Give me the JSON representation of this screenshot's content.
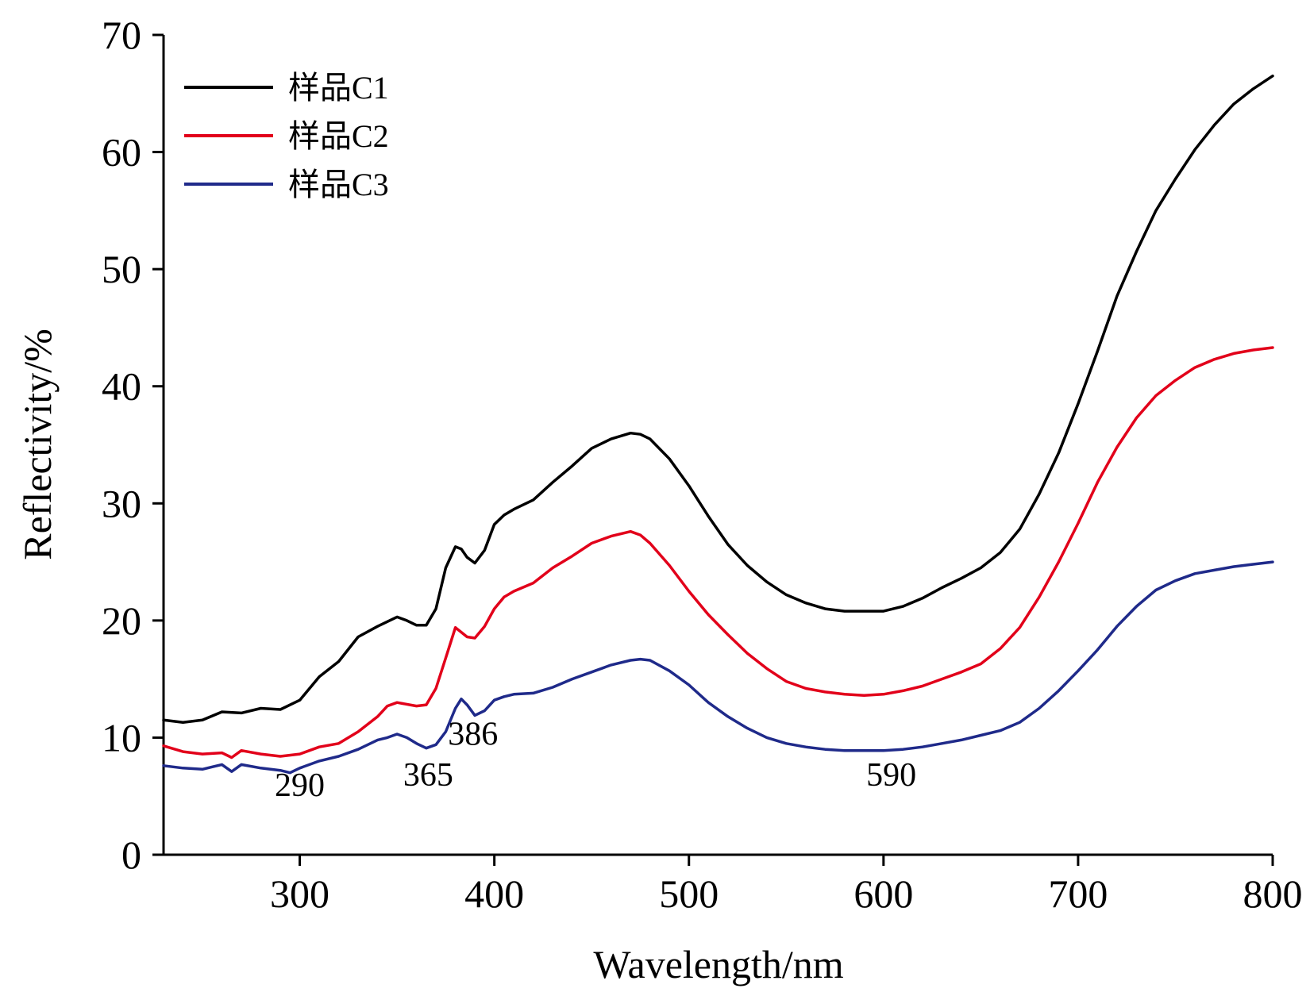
{
  "chart_data": {
    "type": "line",
    "xlabel": "Wavelength/nm",
    "ylabel": "Reflectivity/%",
    "xlim": [
      230,
      800
    ],
    "ylim": [
      0,
      70
    ],
    "xticks": [
      300,
      400,
      500,
      600,
      700,
      800
    ],
    "yticks": [
      0,
      10,
      20,
      30,
      40,
      50,
      60,
      70
    ],
    "grid": false,
    "legend_position": "top-left",
    "series": [
      {
        "name": "样品C1",
        "color": "#000000",
        "x": [
          230,
          240,
          250,
          260,
          270,
          280,
          290,
          300,
          310,
          320,
          330,
          340,
          350,
          355,
          360,
          365,
          370,
          375,
          380,
          383,
          386,
          390,
          395,
          400,
          405,
          410,
          420,
          430,
          440,
          450,
          460,
          470,
          475,
          480,
          490,
          500,
          510,
          520,
          530,
          540,
          550,
          560,
          570,
          580,
          590,
          600,
          610,
          620,
          630,
          640,
          650,
          660,
          670,
          680,
          690,
          700,
          710,
          720,
          730,
          740,
          750,
          760,
          770,
          780,
          790,
          800
        ],
        "y": [
          11.5,
          11.3,
          11.5,
          12.2,
          12.1,
          12.5,
          12.4,
          13.2,
          15.2,
          16.5,
          18.6,
          19.5,
          20.3,
          20.0,
          19.6,
          19.6,
          21.0,
          24.5,
          26.3,
          26.1,
          25.4,
          24.9,
          26.0,
          28.2,
          29.0,
          29.5,
          30.3,
          31.8,
          33.2,
          34.7,
          35.5,
          36.0,
          35.9,
          35.5,
          33.8,
          31.5,
          28.9,
          26.5,
          24.7,
          23.3,
          22.2,
          21.5,
          21.0,
          20.8,
          20.8,
          20.8,
          21.2,
          21.9,
          22.8,
          23.6,
          24.5,
          25.8,
          27.8,
          30.8,
          34.3,
          38.5,
          43.0,
          47.7,
          51.5,
          55.0,
          57.7,
          60.2,
          62.3,
          64.1,
          65.4,
          66.5
        ]
      },
      {
        "name": "样品C2",
        "color": "#e2001a",
        "x": [
          230,
          240,
          250,
          260,
          265,
          270,
          280,
          290,
          300,
          310,
          320,
          330,
          340,
          345,
          350,
          360,
          365,
          370,
          375,
          380,
          383,
          386,
          390,
          395,
          400,
          405,
          410,
          420,
          430,
          440,
          450,
          460,
          470,
          475,
          480,
          490,
          500,
          510,
          520,
          530,
          540,
          550,
          560,
          570,
          580,
          590,
          600,
          610,
          620,
          630,
          640,
          650,
          660,
          670,
          680,
          690,
          700,
          710,
          720,
          730,
          740,
          750,
          760,
          770,
          780,
          790,
          800
        ],
        "y": [
          9.3,
          8.8,
          8.6,
          8.7,
          8.3,
          8.9,
          8.6,
          8.4,
          8.6,
          9.2,
          9.5,
          10.5,
          11.8,
          12.7,
          13.0,
          12.7,
          12.8,
          14.2,
          16.8,
          19.4,
          19.0,
          18.6,
          18.5,
          19.5,
          21.0,
          22.0,
          22.5,
          23.2,
          24.5,
          25.5,
          26.6,
          27.2,
          27.6,
          27.3,
          26.6,
          24.7,
          22.5,
          20.5,
          18.8,
          17.2,
          15.9,
          14.8,
          14.2,
          13.9,
          13.7,
          13.6,
          13.7,
          14.0,
          14.4,
          15.0,
          15.6,
          16.3,
          17.6,
          19.4,
          22.0,
          25.0,
          28.3,
          31.8,
          34.8,
          37.3,
          39.2,
          40.5,
          41.6,
          42.3,
          42.8,
          43.1,
          43.3
        ]
      },
      {
        "name": "样品C3",
        "color": "#1f2a8a",
        "x": [
          230,
          240,
          250,
          255,
          260,
          265,
          270,
          280,
          290,
          295,
          300,
          310,
          320,
          330,
          340,
          345,
          350,
          355,
          360,
          365,
          370,
          375,
          380,
          383,
          386,
          390,
          395,
          400,
          405,
          410,
          420,
          430,
          440,
          450,
          460,
          470,
          475,
          480,
          490,
          500,
          510,
          520,
          530,
          540,
          550,
          560,
          570,
          580,
          590,
          600,
          610,
          620,
          630,
          640,
          650,
          660,
          670,
          680,
          690,
          700,
          710,
          720,
          730,
          740,
          750,
          760,
          770,
          780,
          790,
          800
        ],
        "y": [
          7.6,
          7.4,
          7.3,
          7.5,
          7.7,
          7.1,
          7.7,
          7.4,
          7.2,
          7.0,
          7.4,
          8.0,
          8.4,
          9.0,
          9.8,
          10.0,
          10.3,
          10.0,
          9.5,
          9.1,
          9.4,
          10.5,
          12.5,
          13.3,
          12.8,
          11.9,
          12.3,
          13.2,
          13.5,
          13.7,
          13.8,
          14.3,
          15.0,
          15.6,
          16.2,
          16.6,
          16.7,
          16.6,
          15.7,
          14.5,
          13.0,
          11.8,
          10.8,
          10.0,
          9.5,
          9.2,
          9.0,
          8.9,
          8.9,
          8.9,
          9.0,
          9.2,
          9.5,
          9.8,
          10.2,
          10.6,
          11.3,
          12.5,
          14.0,
          15.7,
          17.5,
          19.5,
          21.2,
          22.6,
          23.4,
          24.0,
          24.3,
          24.6,
          24.8,
          25.0
        ]
      }
    ],
    "annotations": [
      {
        "text": "290",
        "x": 300,
        "y": 5.0
      },
      {
        "text": "365",
        "x": 366,
        "y": 5.9
      },
      {
        "text": "386",
        "x": 389,
        "y": 9.4
      },
      {
        "text": "590",
        "x": 604,
        "y": 5.9
      }
    ]
  }
}
